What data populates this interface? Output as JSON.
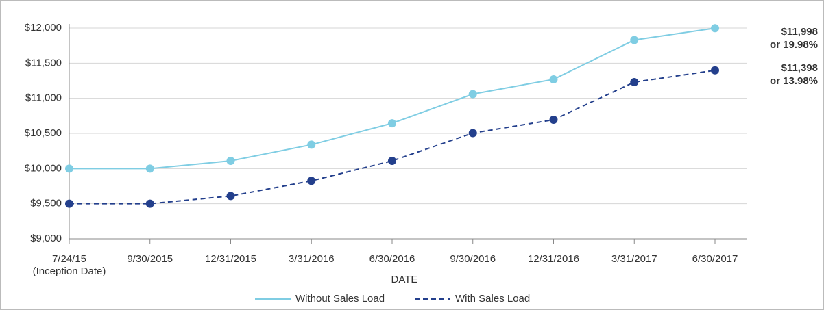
{
  "chart_data": {
    "type": "line",
    "categories": [
      "7/24/15\n(Inception Date)",
      "9/30/2015",
      "12/31/2015",
      "3/31/2016",
      "6/30/2016",
      "9/30/2016",
      "12/31/2016",
      "3/31/2017",
      "6/30/2017"
    ],
    "series": [
      {
        "name": "Without Sales Load",
        "color": "#7fcde3",
        "dash": false,
        "values": [
          10000,
          10000,
          10110,
          10340,
          10645,
          11060,
          11270,
          11830,
          11998
        ]
      },
      {
        "name": "With Sales Load",
        "color": "#233f8c",
        "dash": true,
        "values": [
          9500,
          9500,
          9610,
          9825,
          10110,
          10505,
          10695,
          11230,
          11398
        ]
      }
    ],
    "xlabel": "DATE",
    "ylim": [
      9000,
      12000
    ],
    "yticks": [
      {
        "value": 9000,
        "label": "$9,000"
      },
      {
        "value": 9500,
        "label": "$9,500"
      },
      {
        "value": 10000,
        "label": "$10,000"
      },
      {
        "value": 10500,
        "label": "$10,500"
      },
      {
        "value": 11000,
        "label": "$11,000"
      },
      {
        "value": 11500,
        "label": "$11,500"
      },
      {
        "value": 12000,
        "label": "$12,000"
      }
    ],
    "grid": true,
    "legend": "bottom",
    "annotations": [
      [
        "$11,998",
        "or 19.98%"
      ],
      [
        "$11,398",
        "or 13.98%"
      ]
    ]
  }
}
